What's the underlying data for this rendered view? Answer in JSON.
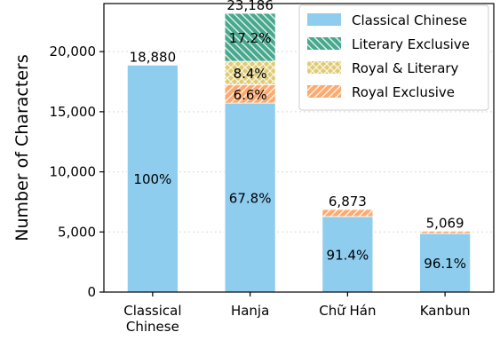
{
  "chart_data": {
    "type": "bar",
    "stacked": true,
    "categories": [
      "Classical\nChinese",
      "Hanja",
      "Chữ Hán",
      "Kanbun"
    ],
    "ylabel": "Number of Characters",
    "xlabel": "",
    "ylim": [
      0,
      24000
    ],
    "yticks": [
      0,
      5000,
      10000,
      15000,
      20000
    ],
    "ytick_labels": [
      "0",
      "5,000",
      "10,000",
      "15,000",
      "20,000"
    ],
    "grid": "horizontal dotted",
    "legend_position": "top-right",
    "totals": [
      18880,
      23186,
      6873,
      5069
    ],
    "total_labels": [
      "18,880",
      "23,186",
      "6,873",
      "5,069"
    ],
    "series": [
      {
        "name": "Classical Chinese",
        "color": "#8ecdee",
        "pattern": "none",
        "values": [
          18880,
          15720,
          6282,
          4871
        ],
        "labels": [
          "100%",
          "67.8%",
          "91.4%",
          "96.1%"
        ]
      },
      {
        "name": "Royal Exclusive",
        "color": "#fdaa6f",
        "pattern": "diagonal",
        "values": [
          0,
          1530,
          591,
          198
        ],
        "labels": [
          "",
          "6.6%",
          "",
          ""
        ]
      },
      {
        "name": "Royal & Literary",
        "color": "#dfcb72",
        "pattern": "crosshatch",
        "values": [
          0,
          1948,
          0,
          0
        ],
        "labels": [
          "",
          "8.4%",
          "",
          ""
        ]
      },
      {
        "name": "Literary Exclusive",
        "color": "#48a88d",
        "pattern": "backdiagonal",
        "values": [
          0,
          3988,
          0,
          0
        ],
        "labels": [
          "",
          "17.2%",
          "",
          ""
        ]
      }
    ],
    "legend_order": [
      "Classical Chinese",
      "Literary Exclusive",
      "Royal & Literary",
      "Royal Exclusive"
    ]
  }
}
